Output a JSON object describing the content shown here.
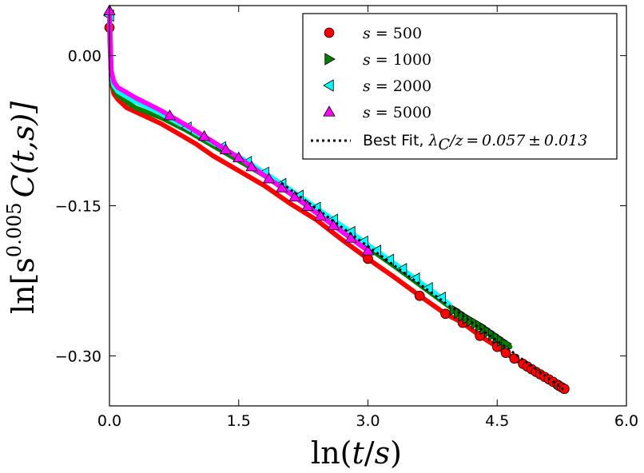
{
  "chart_data": {
    "type": "scatter",
    "title": "",
    "xlabel": "ln(t/s)",
    "ylabel": "ln[s^0.005 C(t,s)]",
    "ylabel_prefix": "ln[s",
    "ylabel_exp": "0.005",
    "ylabel_suffix": "C(t,s)]",
    "xlim": [
      0.0,
      6.0
    ],
    "ylim": [
      -0.35,
      0.05
    ],
    "xticks": [
      "0.0",
      "1.5",
      "3.0",
      "4.5",
      "6.0"
    ],
    "xtick_values": [
      0.0,
      1.5,
      3.0,
      4.5,
      6.0
    ],
    "yticks": [
      "0.00",
      "−0.15",
      "−0.30"
    ],
    "ytick_values": [
      0.0,
      -0.15,
      -0.3
    ],
    "grid": false,
    "legend_position": "top-right",
    "series": [
      {
        "name": "s = 500",
        "label_var": "s",
        "label_val": "500",
        "marker": "circle",
        "color": "#ff0000",
        "x": [
          0.0,
          0.02,
          0.05,
          0.1,
          0.2,
          0.4,
          0.6,
          0.8,
          1.0,
          1.2,
          1.5,
          1.8,
          2.1,
          2.4,
          2.7,
          3.0,
          3.3,
          3.6,
          3.9,
          4.1,
          4.3,
          4.5,
          4.65,
          4.8,
          4.95,
          5.05,
          5.15,
          5.22,
          5.28
        ],
        "y": [
          0.028,
          -0.025,
          -0.038,
          -0.044,
          -0.052,
          -0.06,
          -0.068,
          -0.078,
          -0.088,
          -0.1,
          -0.115,
          -0.13,
          -0.148,
          -0.164,
          -0.184,
          -0.203,
          -0.221,
          -0.24,
          -0.258,
          -0.267,
          -0.28,
          -0.291,
          -0.3,
          -0.308,
          -0.316,
          -0.321,
          -0.326,
          -0.33,
          -0.333
        ],
        "marker_x": [
          0.0,
          3.0,
          3.6,
          3.9,
          4.1,
          4.3,
          4.5,
          4.6,
          4.7,
          4.8,
          4.85,
          4.9,
          4.95,
          5.0,
          5.05,
          5.1,
          5.15,
          5.2,
          5.22,
          5.25,
          5.28
        ]
      },
      {
        "name": "s = 1000",
        "label_var": "s",
        "label_val": "1000",
        "marker": "triangle-right",
        "color": "#008000",
        "x": [
          0.0,
          0.02,
          0.05,
          0.1,
          0.3,
          0.6,
          0.9,
          1.2,
          1.5,
          1.8,
          2.1,
          2.4,
          2.7,
          3.0,
          3.3,
          3.6,
          3.9,
          4.0,
          4.1,
          4.2,
          4.3,
          4.4,
          4.5,
          4.6,
          4.65
        ],
        "y": [
          0.035,
          -0.02,
          -0.033,
          -0.04,
          -0.052,
          -0.062,
          -0.075,
          -0.09,
          -0.105,
          -0.12,
          -0.137,
          -0.155,
          -0.173,
          -0.192,
          -0.21,
          -0.229,
          -0.248,
          -0.254,
          -0.26,
          -0.265,
          -0.27,
          -0.276,
          -0.282,
          -0.288,
          -0.291
        ],
        "marker_x": [
          4.0,
          4.05,
          4.1,
          4.15,
          4.2,
          4.25,
          4.3,
          4.35,
          4.4,
          4.45,
          4.5,
          4.55,
          4.6
        ]
      },
      {
        "name": "s = 2000",
        "label_var": "s",
        "label_val": "2000",
        "marker": "triangle-left",
        "color": "#00ffff",
        "x": [
          0.0,
          0.02,
          0.05,
          0.1,
          0.3,
          0.6,
          0.9,
          1.2,
          1.5,
          1.8,
          2.1,
          2.4,
          2.7,
          3.0,
          3.3,
          3.6,
          3.85,
          3.95
        ],
        "y": [
          0.04,
          -0.018,
          -0.03,
          -0.036,
          -0.046,
          -0.058,
          -0.072,
          -0.087,
          -0.101,
          -0.117,
          -0.134,
          -0.152,
          -0.17,
          -0.189,
          -0.207,
          -0.226,
          -0.242,
          -0.249
        ],
        "marker_x": [
          0.0,
          0.9,
          1.3,
          1.6,
          1.8,
          2.0,
          2.2,
          2.4,
          2.6,
          2.8,
          2.95,
          3.1,
          3.25,
          3.4,
          3.55,
          3.7,
          3.85
        ]
      },
      {
        "name": "s = 5000",
        "label_var": "s",
        "label_val": "5000",
        "marker": "triangle-up",
        "color": "#ff00ff",
        "x": [
          0.0,
          0.02,
          0.05,
          0.1,
          0.3,
          0.6,
          0.9,
          1.2,
          1.5,
          1.8,
          2.1,
          2.4,
          2.7,
          3.0
        ],
        "y": [
          0.045,
          -0.015,
          -0.026,
          -0.032,
          -0.042,
          -0.055,
          -0.07,
          -0.086,
          -0.102,
          -0.12,
          -0.138,
          -0.157,
          -0.176,
          -0.195
        ],
        "marker_x": [
          0.0,
          0.7,
          1.1,
          1.35,
          1.5,
          1.65,
          1.85,
          2.0,
          2.15,
          2.3,
          2.45,
          2.6,
          2.8,
          3.0
        ]
      }
    ],
    "fit": {
      "name": "Best Fit",
      "label_prefix": "Best Fit, ",
      "label_math": "λ",
      "label_sub": "C",
      "label_rest": "/z = 0.057 ± 0.013",
      "slope": -0.063,
      "intercept": -0.0015,
      "x_range": [
        2.0,
        5.3
      ],
      "color": "#000000",
      "style": "dotted"
    }
  }
}
